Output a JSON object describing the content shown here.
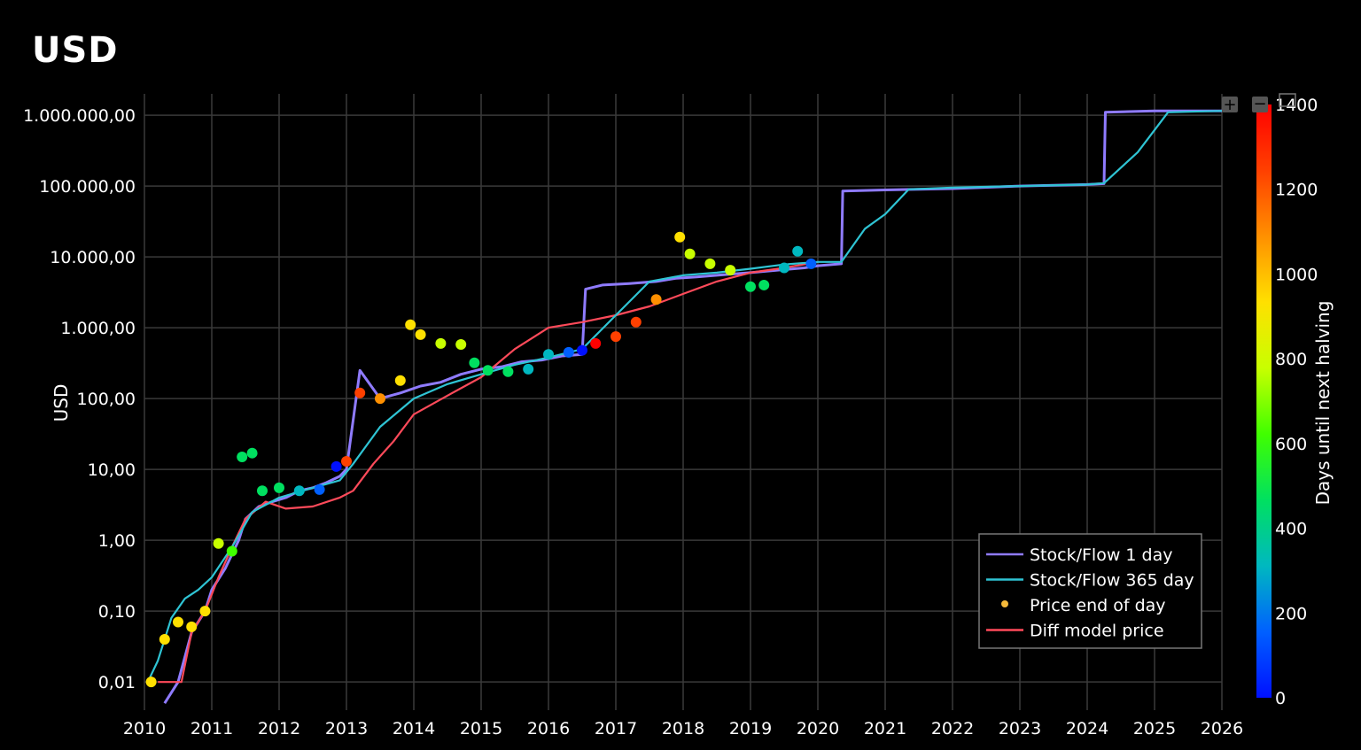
{
  "page": {
    "title": "USD"
  },
  "chart_data": {
    "type": "scatter",
    "title": "USD",
    "xlabel": "",
    "ylabel": "USD",
    "y_scale": "log",
    "xlim": [
      2010,
      2026
    ],
    "ylim": [
      0.004,
      2000000
    ],
    "x_ticks": [
      "2010",
      "2011",
      "2012",
      "2013",
      "2014",
      "2015",
      "2016",
      "2017",
      "2018",
      "2019",
      "2020",
      "2021",
      "2022",
      "2023",
      "2024",
      "2025",
      "2026"
    ],
    "y_ticks": [
      {
        "value": 0.01,
        "label": "0,01"
      },
      {
        "value": 0.1,
        "label": "0,10"
      },
      {
        "value": 1,
        "label": "1,00"
      },
      {
        "value": 10,
        "label": "10,00"
      },
      {
        "value": 100,
        "label": "100,00"
      },
      {
        "value": 1000,
        "label": "1.000,00"
      },
      {
        "value": 10000,
        "label": "10.000,00"
      },
      {
        "value": 100000,
        "label": "100.000,00"
      },
      {
        "value": 1000000,
        "label": "1.000.000,00"
      }
    ],
    "grid": true,
    "legend_position": "bottom-right",
    "colorbar": {
      "title": "Days until next halving",
      "min": 0,
      "max": 1400,
      "ticks": [
        "0",
        "200",
        "400",
        "600",
        "800",
        "1000",
        "1200",
        "1400"
      ],
      "colors": [
        "#0010ff",
        "#0060ff",
        "#00b8c0",
        "#00e060",
        "#40ff00",
        "#c8ff00",
        "#ffe000",
        "#ff9000",
        "#ff4000",
        "#ff0000"
      ]
    },
    "legend": [
      {
        "name": "Stock/Flow 1 day",
        "symbol": "line",
        "color": "#8f7bff"
      },
      {
        "name": "Stock/Flow 365 day",
        "symbol": "line",
        "color": "#2fc4d4"
      },
      {
        "name": "Price end of day",
        "symbol": "dot",
        "color": "#f5b93a"
      },
      {
        "name": "Diff model price",
        "symbol": "line",
        "color": "#ff4a5a"
      }
    ],
    "series": [
      {
        "name": "Stock/Flow 1 day",
        "color": "#8f7bff",
        "x": [
          2010.3,
          2010.5,
          2010.7,
          2010.9,
          2011.0,
          2011.2,
          2011.4,
          2011.5,
          2011.7,
          2011.9,
          2012.1,
          2012.3,
          2012.5,
          2012.7,
          2012.9,
          2013.0,
          2013.2,
          2013.5,
          2013.8,
          2014.1,
          2014.4,
          2014.7,
          2015.0,
          2015.3,
          2015.6,
          2015.9,
          2016.2,
          2016.5,
          2016.55,
          2016.8,
          2017.2,
          2017.6,
          2017.9,
          2018.2,
          2018.6,
          2019.0,
          2019.4,
          2019.8,
          2020.0,
          2020.35,
          2020.37,
          2021.0,
          2021.5,
          2022.0,
          2023.0,
          2024.0,
          2024.25,
          2024.27,
          2025.0,
          2025.5,
          2026.0
        ],
        "y": [
          0.005,
          0.01,
          0.05,
          0.1,
          0.2,
          0.4,
          1.0,
          2.0,
          3.0,
          3.5,
          4.0,
          5.0,
          5.5,
          6.5,
          8.0,
          10.0,
          250,
          100,
          120,
          150,
          170,
          220,
          260,
          280,
          330,
          350,
          400,
          420,
          3500,
          4000,
          4200,
          4500,
          5000,
          5200,
          5600,
          6000,
          6500,
          7000,
          7500,
          8000,
          85000,
          88000,
          90000,
          92000,
          100000,
          105000,
          108000,
          1100000,
          1150000,
          1150000,
          1150000
        ]
      },
      {
        "name": "Stock/Flow 365 day",
        "color": "#2fc4d4",
        "x": [
          2010.05,
          2010.2,
          2010.4,
          2010.6,
          2010.8,
          2011.0,
          2011.3,
          2011.6,
          2012.0,
          2012.5,
          2012.9,
          2013.1,
          2013.5,
          2014.0,
          2014.5,
          2015.0,
          2015.5,
          2016.0,
          2016.5,
          2017.0,
          2017.5,
          2018.0,
          2018.5,
          2019.0,
          2019.5,
          2020.0,
          2020.35,
          2020.7,
          2021.0,
          2021.35,
          2022.0,
          2023.0,
          2024.0,
          2024.25,
          2024.75,
          2025.2,
          2026.0
        ],
        "y": [
          0.01,
          0.02,
          0.08,
          0.15,
          0.2,
          0.3,
          0.8,
          2.5,
          4.0,
          5.5,
          7.0,
          12,
          40,
          100,
          160,
          220,
          300,
          380,
          500,
          1500,
          4500,
          5500,
          6000,
          6800,
          7800,
          8500,
          8500,
          25000,
          40000,
          90000,
          95000,
          100000,
          105000,
          110000,
          300000,
          1100000,
          1150000
        ]
      },
      {
        "name": "Diff model price",
        "color": "#ff4a5a",
        "x": [
          2010.2,
          2010.4,
          2010.55,
          2010.7,
          2010.9,
          2011.1,
          2011.3,
          2011.5,
          2011.8,
          2012.1,
          2012.5,
          2012.9,
          2013.1,
          2013.4,
          2013.7,
          2014.0,
          2014.5,
          2015.0,
          2015.5,
          2016.0,
          2016.5,
          2017.0,
          2017.5,
          2018.0,
          2018.5,
          2019.0,
          2019.5,
          2020.0
        ],
        "y": [
          0.01,
          0.01,
          0.01,
          0.05,
          0.1,
          0.3,
          0.8,
          2.0,
          3.5,
          2.8,
          3.0,
          4.0,
          5.0,
          12,
          25,
          60,
          110,
          200,
          500,
          1000,
          1200,
          1500,
          2000,
          3000,
          4500,
          6000,
          7000,
          8500
        ]
      },
      {
        "name": "Price end of day",
        "color": "#f5b93a",
        "colored_by": "days_until_next_halving",
        "x": [
          2010.1,
          2010.3,
          2010.5,
          2010.7,
          2010.9,
          2011.1,
          2011.3,
          2011.45,
          2011.6,
          2011.75,
          2012.0,
          2012.3,
          2012.6,
          2012.85,
          2013.0,
          2013.2,
          2013.5,
          2013.8,
          2013.95,
          2014.1,
          2014.4,
          2014.7,
          2014.9,
          2015.1,
          2015.4,
          2015.7,
          2016.0,
          2016.3,
          2016.5,
          2016.7,
          2017.0,
          2017.3,
          2017.6,
          2017.95,
          2018.1,
          2018.4,
          2018.7,
          2019.0,
          2019.2,
          2019.5,
          2019.7,
          2019.9
        ],
        "y": [
          0.01,
          0.04,
          0.07,
          0.06,
          0.1,
          0.9,
          0.7,
          15,
          17,
          5,
          5.5,
          5,
          5.2,
          11,
          13,
          120,
          100,
          180,
          1100,
          800,
          600,
          580,
          320,
          250,
          240,
          260,
          420,
          450,
          480,
          600,
          750,
          1200,
          2500,
          19000,
          11000,
          8000,
          6500,
          3800,
          4000,
          7000,
          12000,
          8000
        ],
        "days": [
          880,
          900,
          920,
          930,
          950,
          700,
          560,
          520,
          500,
          480,
          420,
          300,
          120,
          20,
          1250,
          1200,
          1150,
          1000,
          950,
          900,
          850,
          750,
          500,
          430,
          400,
          380,
          300,
          200,
          30,
          1350,
          1300,
          1200,
          1100,
          900,
          850,
          800,
          700,
          500,
          450,
          380,
          300,
          150
        ]
      }
    ]
  }
}
